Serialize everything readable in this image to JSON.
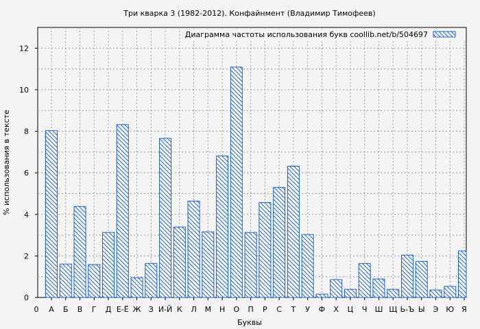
{
  "chart_data": {
    "type": "bar",
    "title": "Три кварка 3 (1982-2012). Конфайнмент (Владимир Тимофеев)",
    "xlabel": "Буквы",
    "ylabel": "% использования в тексте",
    "legend": {
      "label": "Диаграмма частоты использования букв  coollib.net/b/504697",
      "placement": "top-right"
    },
    "origin_label": "0",
    "ylim": [
      0,
      13
    ],
    "yticks": [
      0,
      2,
      4,
      6,
      8,
      10,
      12
    ],
    "grid": true,
    "bar_color": "#1f5fcf",
    "categories": [
      "А",
      "Б",
      "В",
      "Г",
      "Д",
      "Е-Ё",
      "Ж",
      "З",
      "И-Й",
      "К",
      "Л",
      "М",
      "Н",
      "О",
      "П",
      "Р",
      "С",
      "Т",
      "У",
      "Ф",
      "Х",
      "Ц",
      "Ч",
      "Ш",
      "Щ",
      "Ь-Ъ",
      "Ы",
      "Э",
      "Ю",
      "Я"
    ],
    "values": [
      8.03,
      1.61,
      4.38,
      1.58,
      3.13,
      8.32,
      0.95,
      1.64,
      7.66,
      3.39,
      4.64,
      3.16,
      6.81,
      11.09,
      3.13,
      4.57,
      5.3,
      6.32,
      3.03,
      0.16,
      0.86,
      0.39,
      1.64,
      0.89,
      0.39,
      2.04,
      1.74,
      0.36,
      0.53,
      2.24
    ]
  }
}
